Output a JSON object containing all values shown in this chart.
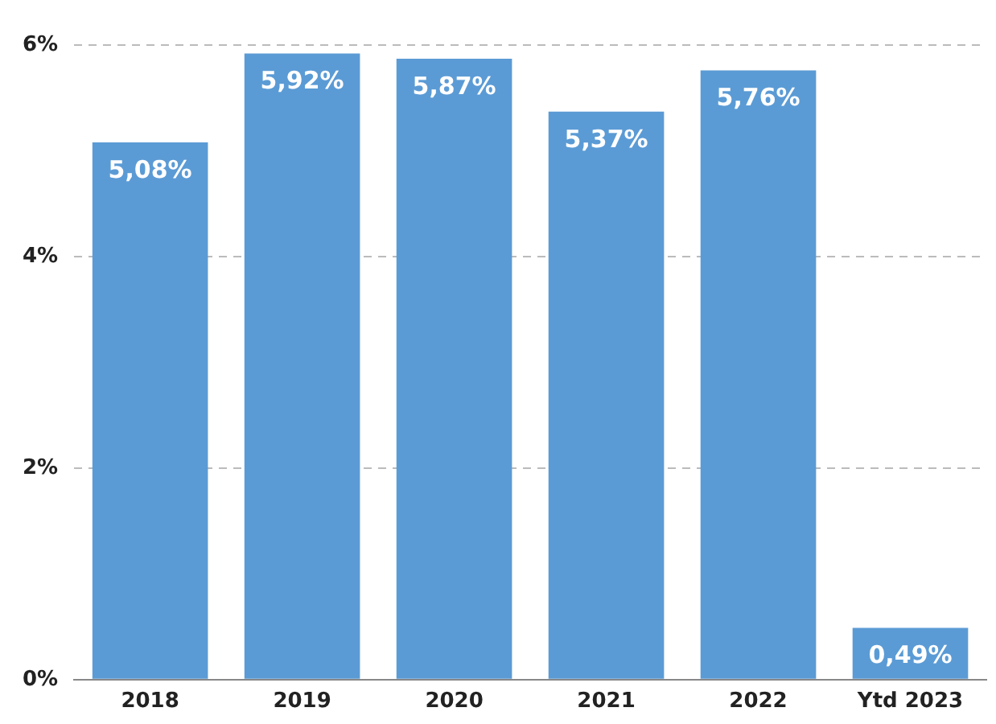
{
  "chart_data": {
    "type": "bar",
    "categories": [
      "2018",
      "2019",
      "2020",
      "2021",
      "2022",
      "Ytd 2023"
    ],
    "series": [
      {
        "color": "#5b9bd5",
        "values": [
          5.08,
          5.92,
          5.87,
          5.37,
          5.76,
          0.49
        ]
      }
    ],
    "value_labels": [
      "5,08%",
      "5,92%",
      "5,87%",
      "5,37%",
      "5,76%",
      "0,49%"
    ],
    "ylim": [
      0,
      6
    ],
    "yticks": [
      {
        "value": 0,
        "label": "0%"
      },
      {
        "value": 2,
        "label": "2%"
      },
      {
        "value": 4,
        "label": "4%"
      },
      {
        "value": 6,
        "label": "6%"
      }
    ],
    "grid": "y"
  }
}
